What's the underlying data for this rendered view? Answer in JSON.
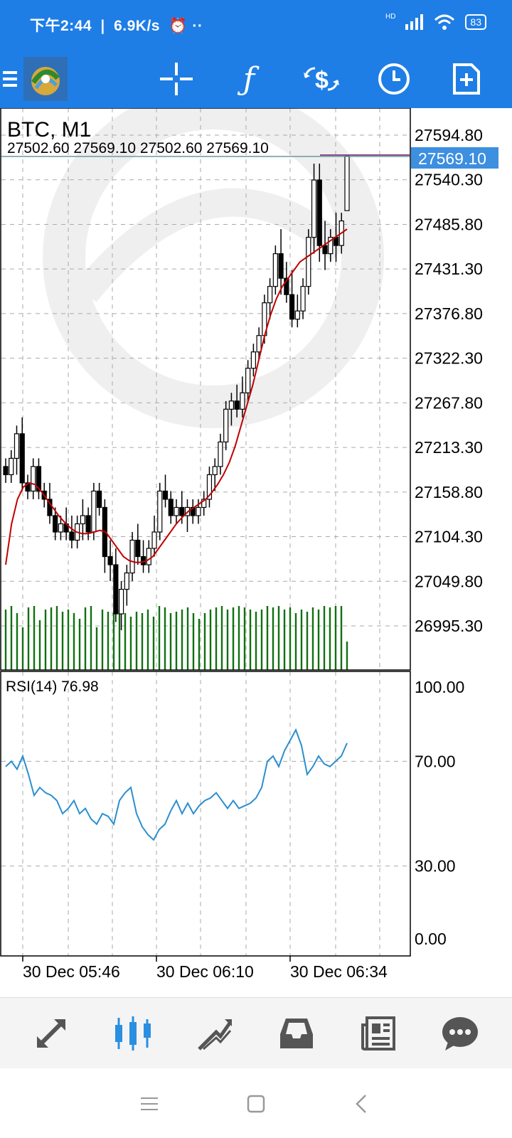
{
  "status_bar": {
    "time": "下午2:44",
    "speed": "6.9K/s",
    "network": "HD",
    "battery": "83"
  },
  "toolbar": {
    "icons": [
      "menu-icon",
      "app-logo-icon",
      "crosshair-icon",
      "indicator-icon",
      "trade-icon",
      "timeframe-icon",
      "add-document-icon"
    ]
  },
  "chart": {
    "symbol_label": "BTC, M1",
    "ohlc_label": "27502.60 27569.10 27502.60 27569.10",
    "current_price_label": "27569.10",
    "price_ticks": [
      "27594.80",
      "27540.30",
      "27485.80",
      "27431.30",
      "27376.80",
      "27322.30",
      "27267.80",
      "27213.30",
      "27158.80",
      "27104.30",
      "27049.80",
      "26995.30"
    ],
    "rsi_label": "RSI(14) 76.98",
    "rsi_ticks": [
      "100.00",
      "70.00",
      "30.00",
      "0.00"
    ],
    "time_labels": [
      "30 Dec 05:46",
      "30 Dec 06:10",
      "30 Dec 06:34"
    ],
    "colors": {
      "up_candle": "#ffffff",
      "down_candle": "#000000",
      "ma_line": "#c00000",
      "volume": "#107010",
      "rsi_line": "#2a8fd0",
      "price_tag": "#3d8fe0"
    }
  },
  "chart_data": {
    "type": "candlestick",
    "title": "BTC, M1",
    "price_range": [
      26950,
      27620
    ],
    "candles": [
      [
        27190,
        27200,
        27170,
        27180
      ],
      [
        27180,
        27210,
        27170,
        27200
      ],
      [
        27200,
        27240,
        27180,
        27230
      ],
      [
        27230,
        27250,
        27160,
        27170
      ],
      [
        27170,
        27180,
        27150,
        27160
      ],
      [
        27160,
        27200,
        27150,
        27190
      ],
      [
        27190,
        27200,
        27150,
        27160
      ],
      [
        27160,
        27170,
        27140,
        27150
      ],
      [
        27150,
        27170,
        27120,
        27130
      ],
      [
        27130,
        27140,
        27100,
        27110
      ],
      [
        27110,
        27130,
        27100,
        27120
      ],
      [
        27120,
        27140,
        27100,
        27110
      ],
      [
        27110,
        27130,
        27090,
        27100
      ],
      [
        27100,
        27130,
        27090,
        27120
      ],
      [
        27120,
        27150,
        27100,
        27130
      ],
      [
        27130,
        27140,
        27100,
        27110
      ],
      [
        27110,
        27170,
        27100,
        27160
      ],
      [
        27160,
        27170,
        27130,
        27140
      ],
      [
        27140,
        27150,
        27060,
        27080
      ],
      [
        27080,
        27100,
        27050,
        27070
      ],
      [
        27070,
        27090,
        27000,
        27010
      ],
      [
        27010,
        27050,
        26990,
        27040
      ],
      [
        27040,
        27070,
        27020,
        27060
      ],
      [
        27060,
        27110,
        27050,
        27100
      ],
      [
        27100,
        27120,
        27070,
        27080
      ],
      [
        27080,
        27100,
        27060,
        27070
      ],
      [
        27070,
        27100,
        27060,
        27090
      ],
      [
        27090,
        27130,
        27080,
        27110
      ],
      [
        27110,
        27170,
        27100,
        27160
      ],
      [
        27160,
        27180,
        27140,
        27150
      ],
      [
        27150,
        27160,
        27120,
        27130
      ],
      [
        27130,
        27150,
        27120,
        27140
      ],
      [
        27140,
        27160,
        27120,
        27130
      ],
      [
        27130,
        27150,
        27110,
        27140
      ],
      [
        27140,
        27150,
        27120,
        27130
      ],
      [
        27130,
        27150,
        27120,
        27140
      ],
      [
        27140,
        27160,
        27130,
        27150
      ],
      [
        27150,
        27190,
        27140,
        27180
      ],
      [
        27180,
        27200,
        27160,
        27190
      ],
      [
        27190,
        27230,
        27180,
        27220
      ],
      [
        27220,
        27270,
        27210,
        27260
      ],
      [
        27260,
        27280,
        27240,
        27270
      ],
      [
        27270,
        27290,
        27250,
        27260
      ],
      [
        27260,
        27300,
        27250,
        27280
      ],
      [
        27280,
        27320,
        27270,
        27310
      ],
      [
        27310,
        27340,
        27300,
        27330
      ],
      [
        27330,
        27360,
        27320,
        27350
      ],
      [
        27350,
        27400,
        27340,
        27390
      ],
      [
        27390,
        27420,
        27370,
        27410
      ],
      [
        27410,
        27460,
        27400,
        27450
      ],
      [
        27450,
        27480,
        27400,
        27420
      ],
      [
        27420,
        27440,
        27390,
        27400
      ],
      [
        27400,
        27430,
        27360,
        27370
      ],
      [
        27370,
        27400,
        27360,
        27380
      ],
      [
        27380,
        27420,
        27370,
        27410
      ],
      [
        27410,
        27480,
        27400,
        27470
      ],
      [
        27470,
        27560,
        27450,
        27540
      ],
      [
        27540,
        27560,
        27440,
        27460
      ],
      [
        27460,
        27490,
        27430,
        27450
      ],
      [
        27450,
        27480,
        27440,
        27470
      ],
      [
        27470,
        27500,
        27440,
        27460
      ],
      [
        27460,
        27500,
        27450,
        27490
      ],
      [
        27502.6,
        27569.1,
        27502.6,
        27569.1
      ]
    ],
    "moving_average": [
      27070,
      27120,
      27150,
      27165,
      27170,
      27168,
      27160,
      27150,
      27140,
      27130,
      27122,
      27115,
      27110,
      27108,
      27108,
      27110,
      27112,
      27110,
      27100,
      27090,
      27080,
      27075,
      27073,
      27073,
      27075,
      27080,
      27090,
      27100,
      27110,
      27120,
      27128,
      27135,
      27140,
      27145,
      27150,
      27158,
      27168,
      27180,
      27195,
      27215,
      27240,
      27265,
      27290,
      27320,
      27350,
      27375,
      27395,
      27410,
      27420,
      27430,
      27440,
      27445,
      27450,
      27455,
      27460,
      27465,
      27470,
      27475,
      27480
    ],
    "volume": [
      85,
      90,
      80,
      60,
      88,
      90,
      70,
      85,
      88,
      90,
      82,
      85,
      80,
      72,
      88,
      90,
      60,
      85,
      82,
      80,
      85,
      80,
      75,
      82,
      80,
      85,
      75,
      90,
      88,
      80,
      82,
      85,
      88,
      80,
      72,
      80,
      85,
      88,
      90,
      85,
      88,
      90,
      88,
      85,
      82,
      85,
      90,
      88,
      90,
      85,
      88,
      80,
      85,
      82,
      88,
      85,
      90,
      88,
      90,
      90,
      40
    ],
    "rsi": {
      "name": "RSI(14)",
      "last": 76.98,
      "ylim": [
        0,
        100
      ],
      "levels": [
        70,
        30
      ],
      "values": [
        68,
        70,
        67,
        72,
        65,
        57,
        60,
        58,
        57,
        55,
        50,
        52,
        55,
        50,
        52,
        48,
        46,
        50,
        49,
        46,
        55,
        58,
        60,
        50,
        45,
        42,
        40,
        44,
        46,
        51,
        55,
        50,
        54,
        50,
        53,
        55,
        56,
        58,
        55,
        52,
        55,
        52,
        53,
        54,
        56,
        60,
        70,
        72,
        68,
        74,
        78,
        82,
        76,
        65,
        68,
        72,
        69,
        68,
        70,
        72,
        76.98
      ]
    },
    "x_labels": [
      "30 Dec 05:46",
      "30 Dec 06:10",
      "30 Dec 06:34"
    ]
  },
  "bottom_nav": {
    "items": [
      "quotes-icon",
      "chart-icon",
      "trade-icon",
      "history-icon",
      "news-icon",
      "messages-icon"
    ]
  }
}
